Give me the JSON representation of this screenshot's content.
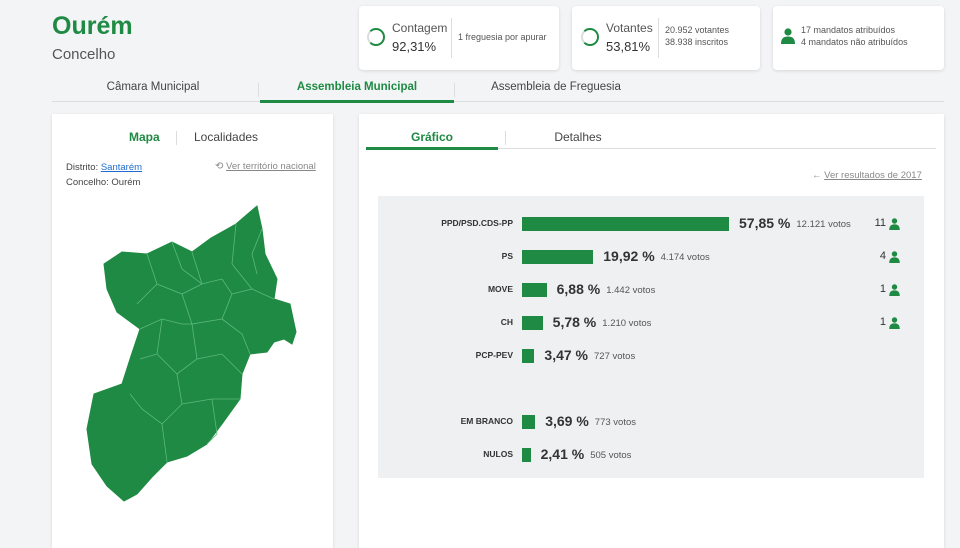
{
  "header": {
    "title": "Ourém",
    "subtitle": "Concelho"
  },
  "stats": {
    "contagem": {
      "label": "Contagem",
      "value": "92,31%",
      "note": "1 freguesia por apurar"
    },
    "votantes": {
      "label": "Votantes",
      "value": "53,81%",
      "votantes": "20.952 votantes",
      "inscritos": "38.938 inscritos"
    },
    "mandatos": {
      "atribuidos": "17 mandatos atribuídos",
      "nao_atribuidos": "4 mandatos não atribuídos"
    }
  },
  "main_tabs": [
    "Câmara Municipal",
    "Assembleia Municipal",
    "Assembleia de Freguesia"
  ],
  "left_panel": {
    "tabs": [
      "Mapa",
      "Localidades"
    ],
    "distrito_label": "Distrito:",
    "distrito_value": "Santarém",
    "concelho_label": "Concelho:",
    "concelho_value": "Ourém",
    "territory_link": "Ver território nacional"
  },
  "right_panel": {
    "tabs": [
      "Gráfico",
      "Detalhes"
    ],
    "prev_results_link": "Ver resultados de 2017"
  },
  "colors": {
    "accent": "#1e8a43"
  },
  "chart_data": {
    "type": "bar",
    "orientation": "horizontal",
    "categories": [
      "PPD/PSD.CDS-PP",
      "PS",
      "MOVE",
      "CH",
      "PCP-PEV",
      "EM BRANCO",
      "NULOS"
    ],
    "values": [
      57.85,
      19.92,
      6.88,
      5.78,
      3.47,
      3.69,
      2.41
    ],
    "value_labels": [
      "57,85 %",
      "19,92 %",
      "6,88 %",
      "5,78 %",
      "3,47 %",
      "3,69 %",
      "2,41 %"
    ],
    "votes": [
      "12.121 votos",
      "4.174 votos",
      "1.442 votos",
      "1.210 votos",
      "727 votos",
      "773 votos",
      "505 votos"
    ],
    "seats": [
      "11",
      "4",
      "1",
      "1",
      "",
      "",
      ""
    ]
  }
}
